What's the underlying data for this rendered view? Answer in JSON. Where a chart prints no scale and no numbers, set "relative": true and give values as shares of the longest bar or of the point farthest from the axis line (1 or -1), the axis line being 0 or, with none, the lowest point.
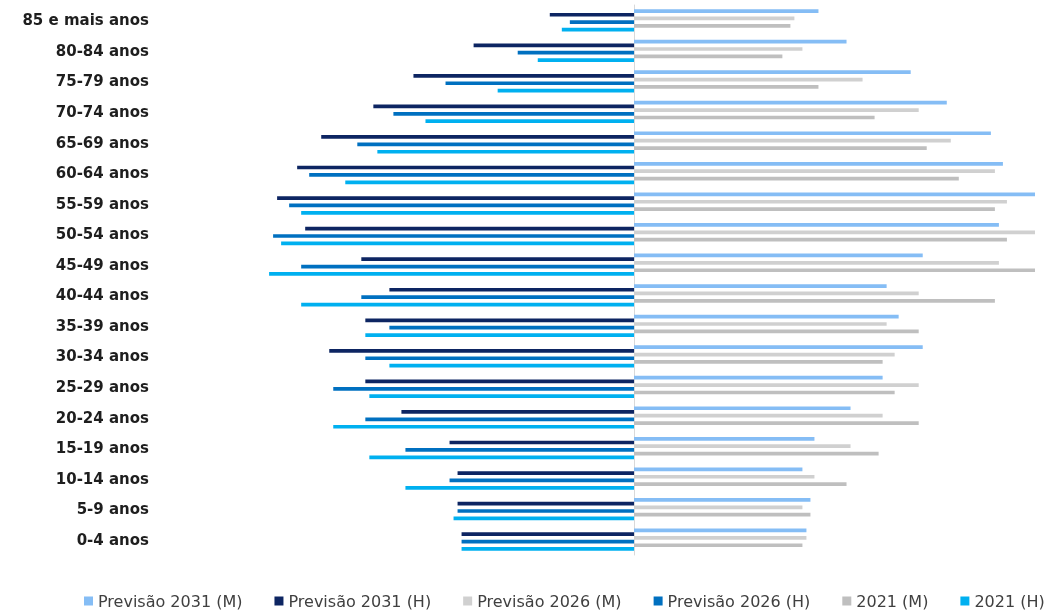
{
  "chart_data": {
    "type": "bar",
    "orientation": "horizontal",
    "relative": true,
    "legend": "bottom",
    "categories": [
      "85 e mais anos",
      "80-84 anos",
      "75-79 anos",
      "70-74 anos",
      "65-69 anos",
      "60-64 anos",
      "55-59 anos",
      "50-54 anos",
      "45-49 anos",
      "40-44 anos",
      "35-39 anos",
      "30-34 anos",
      "25-29 anos",
      "20-24 anos",
      "15-19 anos",
      "10-14 anos",
      "5-9 anos",
      "0-4 anos"
    ],
    "series": [
      {
        "name": "Previsão 2031 (M)",
        "color": "#85bdf5",
        "values": [
          0.46,
          0.53,
          0.69,
          0.78,
          0.89,
          0.92,
          1.0,
          0.91,
          0.72,
          0.63,
          0.66,
          0.72,
          0.62,
          0.54,
          0.45,
          0.42,
          0.44,
          0.43
        ]
      },
      {
        "name": "Previsão 2031 (H)",
        "color": "#0d2562",
        "values": [
          -0.21,
          -0.4,
          -0.55,
          -0.65,
          -0.78,
          -0.84,
          -0.89,
          -0.82,
          -0.68,
          -0.61,
          -0.67,
          -0.76,
          -0.67,
          -0.58,
          -0.46,
          -0.44,
          -0.44,
          -0.43
        ]
      },
      {
        "name": "Previsão 2026 (M)",
        "color": "#d0d0d0",
        "values": [
          0.4,
          0.42,
          0.57,
          0.71,
          0.79,
          0.9,
          0.93,
          1.0,
          0.91,
          0.71,
          0.63,
          0.65,
          0.71,
          0.62,
          0.54,
          0.45,
          0.42,
          0.43
        ]
      },
      {
        "name": "Previsão 2026 (H)",
        "color": "#0070c0",
        "values": [
          -0.16,
          -0.29,
          -0.47,
          -0.6,
          -0.69,
          -0.81,
          -0.86,
          -0.9,
          -0.83,
          -0.68,
          -0.61,
          -0.67,
          -0.75,
          -0.67,
          -0.57,
          -0.46,
          -0.44,
          -0.43
        ]
      },
      {
        "name": "2021 (M)",
        "color": "#bfbfbf",
        "values": [
          0.39,
          0.37,
          0.46,
          0.6,
          0.73,
          0.81,
          0.9,
          0.93,
          1.0,
          0.9,
          0.71,
          0.62,
          0.65,
          0.71,
          0.61,
          0.53,
          0.44,
          0.42
        ]
      },
      {
        "name": "2021 (H)",
        "color": "#00b0f0",
        "values": [
          -0.18,
          -0.24,
          -0.34,
          -0.52,
          -0.64,
          -0.72,
          -0.83,
          -0.88,
          -0.91,
          -0.83,
          -0.67,
          -0.61,
          -0.66,
          -0.75,
          -0.66,
          -0.57,
          -0.45,
          -0.43
        ]
      }
    ]
  }
}
